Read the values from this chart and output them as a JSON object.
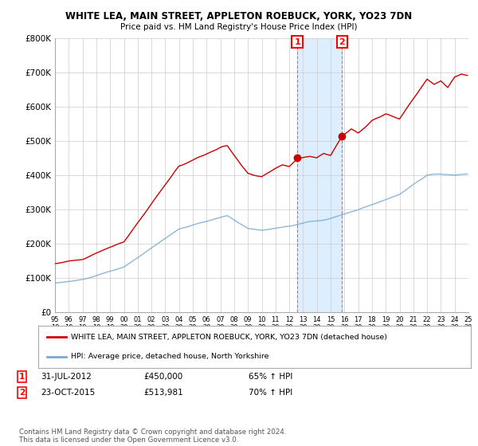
{
  "title": "WHITE LEA, MAIN STREET, APPLETON ROEBUCK, YORK, YO23 7DN",
  "subtitle": "Price paid vs. HM Land Registry's House Price Index (HPI)",
  "ylim": [
    0,
    800000
  ],
  "yticks": [
    0,
    100000,
    200000,
    300000,
    400000,
    500000,
    600000,
    700000,
    800000
  ],
  "ytick_labels": [
    "£0",
    "£100K",
    "£200K",
    "£300K",
    "£400K",
    "£500K",
    "£600K",
    "£700K",
    "£800K"
  ],
  "hpi_color": "#7aaad4",
  "price_color": "#cc0000",
  "shade_color": "#ddeeff",
  "t1_year": 2012.58,
  "t2_year": 2015.83,
  "t1_price": 450000,
  "t2_price": 513981,
  "legend_line1": "WHITE LEA, MAIN STREET, APPLETON ROEBUCK, YORK, YO23 7DN (detached house)",
  "legend_line2": "HPI: Average price, detached house, North Yorkshire",
  "t1_label": "1",
  "t2_label": "2",
  "t1_date_str": "31-JUL-2012",
  "t2_date_str": "23-OCT-2015",
  "t1_price_str": "£450,000",
  "t2_price_str": "£513,981",
  "t1_hpi_str": "65% ↑ HPI",
  "t2_hpi_str": "70% ↑ HPI",
  "footnote": "Contains HM Land Registry data © Crown copyright and database right 2024.\nThis data is licensed under the Open Government Licence v3.0.",
  "background_color": "#ffffff",
  "grid_color": "#cccccc",
  "xlim_start": 1995,
  "xlim_end": 2025
}
